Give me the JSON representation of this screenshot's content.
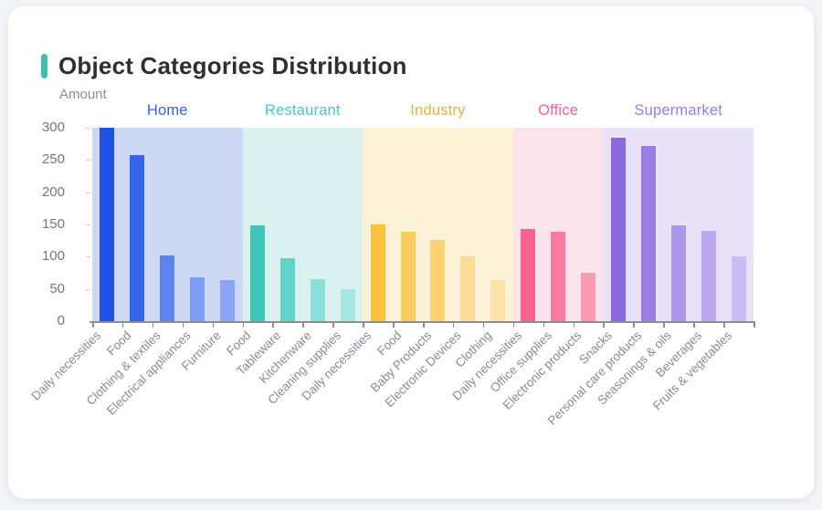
{
  "header": {
    "title": "Object Categories Distribution"
  },
  "colors": {
    "accent_teal": "#3bbfae",
    "card_background": "#ffffff",
    "page_background": "#f2f4f7",
    "axis_line": "#8e8e92",
    "axis_text": "#757579",
    "x_label_text": "#8a8a94",
    "title_text": "#2d2f33"
  },
  "chart_data": {
    "type": "bar",
    "title": "Object Categories Distribution",
    "xlabel": "",
    "ylabel": "Amount",
    "ylim": [
      0,
      300
    ],
    "yticks": [
      0,
      50,
      100,
      150,
      200,
      250,
      300
    ],
    "grid": false,
    "legend_position": "top-inline-group-headers",
    "groups": [
      {
        "name": "Home",
        "label_color": "#3c5be9",
        "band_color": "#cdd8f5",
        "bars": [
          {
            "label": "Daily necessities",
            "value": 300,
            "color": "#2050e8"
          },
          {
            "label": "Food",
            "value": 258,
            "color": "#3564ea"
          },
          {
            "label": "Clothing & textiles",
            "value": 102,
            "color": "#5d84ee"
          },
          {
            "label": "Electrical appliances",
            "value": 68,
            "color": "#7f9df2"
          },
          {
            "label": "Furniture",
            "value": 63,
            "color": "#8aa5f3"
          }
        ]
      },
      {
        "name": "Restaurant",
        "label_color": "#47c9ba",
        "band_color": "#d9f2ef",
        "bars": [
          {
            "label": "Food",
            "value": 148,
            "color": "#3ec6bb"
          },
          {
            "label": "Tableware",
            "value": 97,
            "color": "#63d2c9"
          },
          {
            "label": "Kitchenware",
            "value": 65,
            "color": "#8adfd8"
          },
          {
            "label": "Cleaning supplies",
            "value": 50,
            "color": "#a5e6e0"
          }
        ]
      },
      {
        "name": "Industry",
        "label_color": "#e9b143",
        "band_color": "#fdf2d8",
        "bars": [
          {
            "label": "Daily necessities",
            "value": 150,
            "color": "#fdc23d"
          },
          {
            "label": "Food",
            "value": 139,
            "color": "#fccb5f"
          },
          {
            "label": "Baby Products",
            "value": 126,
            "color": "#fcd274"
          },
          {
            "label": "Electronic Devices",
            "value": 100,
            "color": "#fbdc95"
          },
          {
            "label": "Clothing",
            "value": 63,
            "color": "#fbe2a8"
          }
        ]
      },
      {
        "name": "Office",
        "label_color": "#f4608f",
        "band_color": "#fde3ec",
        "bars": [
          {
            "label": "Daily necessities",
            "value": 143,
            "color": "#f9638d"
          },
          {
            "label": "Office supplies",
            "value": 138,
            "color": "#fa7ba0"
          },
          {
            "label": "Electronic products",
            "value": 75,
            "color": "#fc9ab4"
          }
        ]
      },
      {
        "name": "Supermarket",
        "label_color": "#9b7ce6",
        "band_color": "#e7e2f8",
        "bars": [
          {
            "label": "Snacks",
            "value": 285,
            "color": "#8a68e0"
          },
          {
            "label": "Personal care products",
            "value": 272,
            "color": "#9a7ee5"
          },
          {
            "label": "Seasonings & oils",
            "value": 148,
            "color": "#ad97ec"
          },
          {
            "label": "Beverages",
            "value": 140,
            "color": "#bba9f0"
          },
          {
            "label": "Fruits & vegetables",
            "value": 101,
            "color": "#c9bbf4"
          }
        ]
      }
    ]
  }
}
